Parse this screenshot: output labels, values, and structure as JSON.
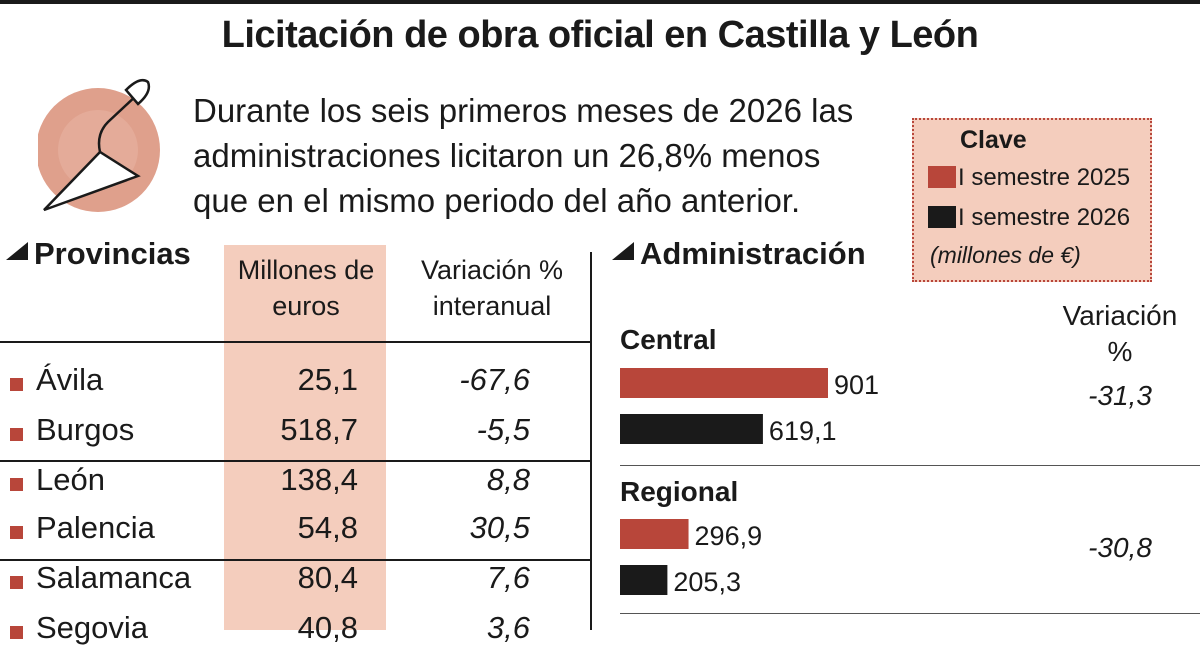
{
  "title": "Licitación de obra oficial en Castilla y León",
  "intro": [
    "Durante los seis primeros meses de 2026 las",
    "administraciones licitaron un 26,8% menos",
    "que en el mismo periodo del año anterior."
  ],
  "legend": {
    "title": "Clave",
    "items": [
      "I semestre 2025",
      "I semestre 2026"
    ],
    "unit": "(millones de €)"
  },
  "colors": {
    "s2025": "#b8463a",
    "s2026": "#1a1a1a",
    "highlight": "#f4cdbd"
  },
  "icon": "trowel-icon",
  "chart_data": [
    {
      "type": "table",
      "title": "Provincias",
      "columns": [
        "Millones de euros",
        "Variación % interanual"
      ],
      "rows": [
        {
          "name": "Ávila",
          "value": "25,1",
          "var": "-67,6"
        },
        {
          "name": "Burgos",
          "value": "518,7",
          "var": "-5,5"
        },
        {
          "name": "León",
          "value": "138,4",
          "var": "8,8"
        },
        {
          "name": "Palencia",
          "value": "54,8",
          "var": "30,5"
        },
        {
          "name": "Salamanca",
          "value": "80,4",
          "var": "7,6"
        },
        {
          "name": "Segovia",
          "value": "40,8",
          "var": "3,6"
        }
      ]
    },
    {
      "type": "bar",
      "title": "Administración",
      "varlabel": [
        "Variación",
        "%"
      ],
      "series": [
        {
          "name": "I semestre 2025",
          "values": [
            901,
            296.9
          ]
        },
        {
          "name": "I semestre 2026",
          "values": [
            619.1,
            205.3
          ]
        }
      ],
      "categories": [
        "Central",
        "Regional"
      ],
      "labels": [
        [
          "901",
          "619,1"
        ],
        [
          "296,9",
          "205,3"
        ]
      ],
      "variation": [
        "-31,3",
        "-30,8"
      ]
    }
  ]
}
